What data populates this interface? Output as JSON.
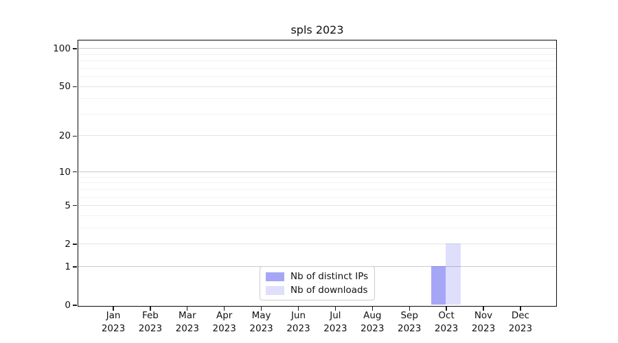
{
  "figure": {
    "title": "spls 2023"
  },
  "chart_data": {
    "type": "bar",
    "title": "spls 2023",
    "categories": [
      "Jan 2023",
      "Feb 2023",
      "Mar 2023",
      "Apr 2023",
      "May 2023",
      "Jun 2023",
      "Jul 2023",
      "Aug 2023",
      "Sep 2023",
      "Oct 2023",
      "Nov 2023",
      "Dec 2023"
    ],
    "series": [
      {
        "name": "Nb of distinct IPs",
        "color": "rgba(68,68,238,0.48)",
        "values": [
          0,
          0,
          0,
          0,
          0,
          0,
          0,
          0,
          0,
          1,
          0,
          0
        ]
      },
      {
        "name": "Nb of downloads",
        "color": "rgba(68,68,238,0.17)",
        "values": [
          0,
          0,
          0,
          0,
          0,
          0,
          0,
          0,
          0,
          2,
          0,
          0
        ]
      }
    ],
    "xlabel": "",
    "ylabel": "",
    "yscale": "log1p",
    "yticks": [
      0,
      1,
      2,
      5,
      10,
      20,
      50,
      100
    ],
    "yticks_emphasized": [
      1,
      10,
      100
    ],
    "minor_yticks": [
      3,
      4,
      6,
      7,
      8,
      9,
      30,
      40,
      60,
      70,
      80,
      90
    ],
    "ylim": [
      0,
      115
    ],
    "grid": true,
    "legend_position": "lower center"
  },
  "colors": {
    "grid_major": "#c9c9c9",
    "grid_mid": "#e3e3e3",
    "grid_minor": "#f2f2f2",
    "spine": "#0a0a0a"
  }
}
